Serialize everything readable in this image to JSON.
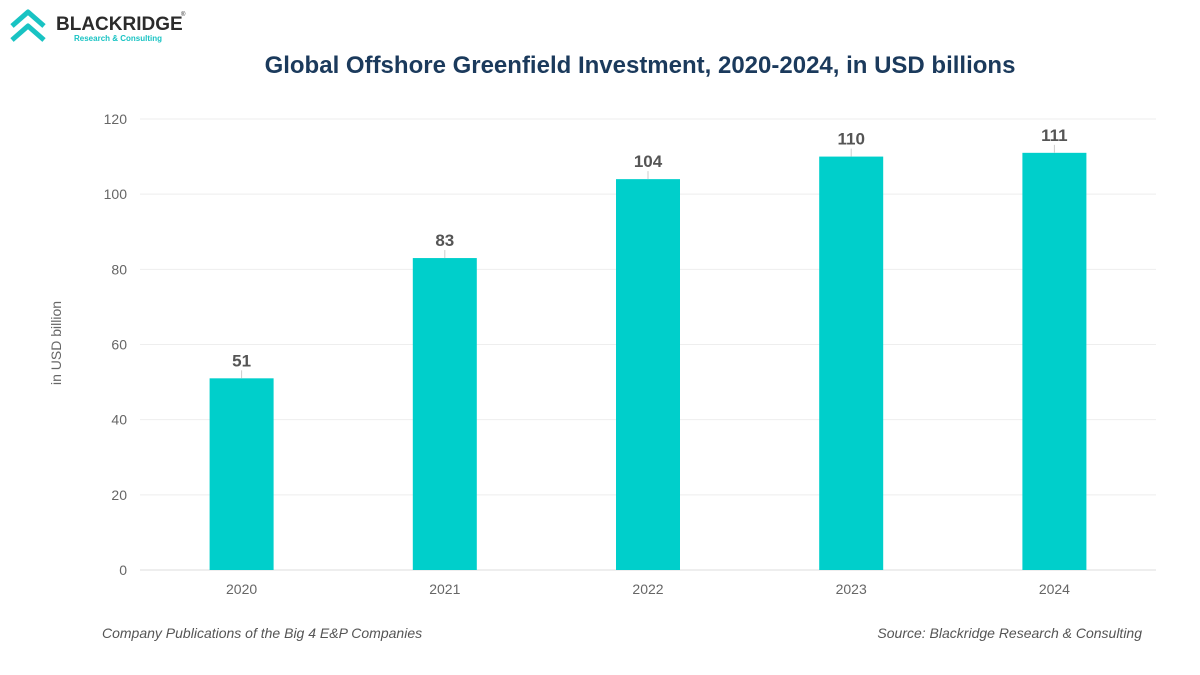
{
  "brand": {
    "name": "BLACKRIDGE",
    "tagline": "Research & Consulting",
    "registered": "®",
    "colors": {
      "dark": "#2b2b2b",
      "accent": "#19c3c3"
    }
  },
  "chart_data": {
    "type": "bar",
    "title": "Global Offshore Greenfield Investment, 2020-2024, in USD billions",
    "ylabel": "in USD billion",
    "xlabel": "",
    "categories": [
      "2020",
      "2021",
      "2022",
      "2023",
      "2024"
    ],
    "values": [
      51,
      83,
      104,
      110,
      111
    ],
    "ylim": [
      0,
      120
    ],
    "yticks": [
      0,
      20,
      40,
      60,
      80,
      100,
      120
    ],
    "grid": true,
    "data_labels": true,
    "bar_color": "#00cfcb"
  },
  "footer": {
    "left": "Company Publications of the Big 4 E&P Companies",
    "right": "Source: Blackridge Research & Consulting"
  }
}
